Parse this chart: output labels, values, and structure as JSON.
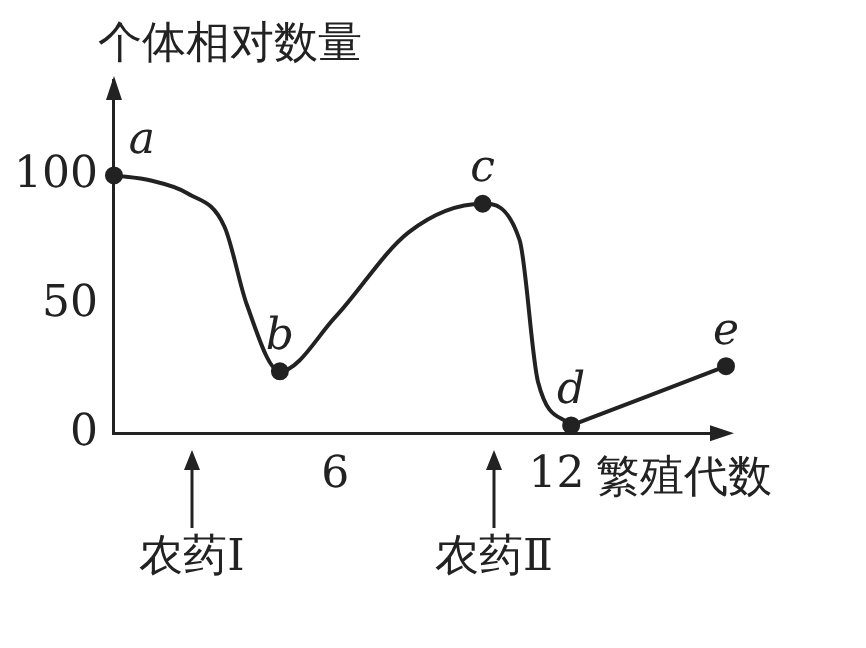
{
  "chart_data": {
    "type": "line",
    "xlabel": "繁殖代数",
    "ylabel": "个体相对数量",
    "xlim": [
      0,
      16.6
    ],
    "xticks": [
      6,
      12
    ],
    "ylim": [
      0,
      137
    ],
    "yticks": [
      0,
      50,
      100
    ],
    "grid": false,
    "legend": false,
    "series": [
      {
        "type": "line",
        "color": "#222222",
        "marker": "none",
        "x": [
          0,
          1,
          2,
          3,
          3.6,
          4.5,
          6,
          8,
          10,
          11,
          11.5,
          12.4
        ],
        "values": [
          100,
          98,
          93,
          80,
          50,
          24,
          45,
          78,
          89,
          75,
          20,
          3
        ]
      },
      {
        "type": "line",
        "color": "#222222",
        "marker": "none",
        "x": [
          12.4,
          16.6
        ],
        "values": [
          3,
          26
        ]
      },
      {
        "type": "scatter",
        "color": "#222222",
        "marker": "circle",
        "x": [
          0,
          4.5,
          10,
          12.4,
          16.6
        ],
        "values": [
          100,
          24,
          89,
          3,
          26
        ]
      }
    ],
    "annotations": [
      {
        "text": "a",
        "x": 0,
        "y": 100
      },
      {
        "text": "b",
        "x": 4.5,
        "y": 24
      },
      {
        "text": "c",
        "x": 10,
        "y": 89
      },
      {
        "text": "d",
        "x": 12.4,
        "y": 3
      },
      {
        "text": "e",
        "x": 16.6,
        "y": 26
      },
      "农药Ⅰ",
      "农药Ⅱ"
    ]
  }
}
